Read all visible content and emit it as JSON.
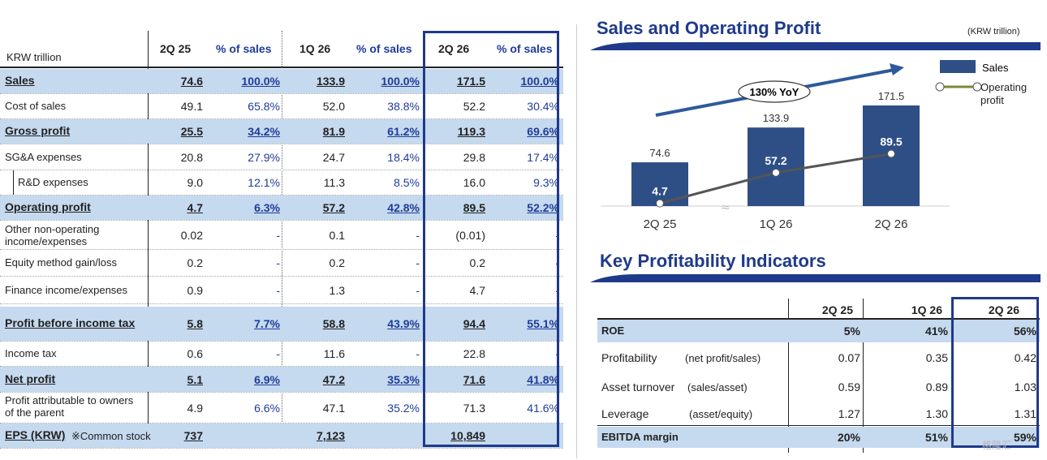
{
  "income_statement": {
    "unit": "KRW trillion",
    "columns": [
      "2Q 25",
      "% of sales",
      "1Q 26",
      "% of sales",
      "2Q 26",
      "% of sales"
    ],
    "rows": [
      {
        "label": "Sales",
        "bold": true,
        "values": [
          "74.6",
          "100.0%",
          "133.9",
          "100.0%",
          "171.5",
          "100.0%"
        ]
      },
      {
        "label": "Cost of sales",
        "bold": false,
        "values": [
          "49.1",
          "65.8%",
          "52.0",
          "38.8%",
          "52.2",
          "30.4%"
        ]
      },
      {
        "label": "Gross profit",
        "bold": true,
        "values": [
          "25.5",
          "34.2%",
          "81.9",
          "61.2%",
          "119.3",
          "69.6%"
        ]
      },
      {
        "label": "SG&A expenses",
        "bold": false,
        "values": [
          "20.8",
          "27.9%",
          "24.7",
          "18.4%",
          "29.8",
          "17.4%"
        ]
      },
      {
        "label": "R&D expenses",
        "bold": false,
        "values": [
          "9.0",
          "12.1%",
          "11.3",
          "8.5%",
          "16.0",
          "9.3%"
        ]
      },
      {
        "label": "Operating profit",
        "bold": true,
        "values": [
          "4.7",
          "6.3%",
          "57.2",
          "42.8%",
          "89.5",
          "52.2%"
        ]
      },
      {
        "label": "Other non-operating income/expenses",
        "bold": false,
        "values": [
          "0.02",
          "-",
          "0.1",
          "-",
          "(0.01)",
          "-"
        ]
      },
      {
        "label": "Equity method gain/loss",
        "bold": false,
        "values": [
          "0.2",
          "-",
          "0.2",
          "-",
          "0.2",
          "-"
        ]
      },
      {
        "label": "Finance income/expenses",
        "bold": false,
        "values": [
          "0.9",
          "-",
          "1.3",
          "-",
          "4.7",
          "-"
        ]
      },
      {
        "label": "Profit before income tax",
        "bold": true,
        "values": [
          "5.8",
          "7.7%",
          "58.8",
          "43.9%",
          "94.4",
          "55.1%"
        ]
      },
      {
        "label": "Income tax",
        "bold": false,
        "values": [
          "0.6",
          "-",
          "11.6",
          "-",
          "22.8",
          "-"
        ]
      },
      {
        "label": "Net profit",
        "bold": true,
        "values": [
          "5.1",
          "6.9%",
          "47.2",
          "35.3%",
          "71.6",
          "41.8%"
        ]
      },
      {
        "label": "Profit attributable to owners of the parent",
        "bold": false,
        "values": [
          "4.9",
          "6.6%",
          "47.1",
          "35.2%",
          "71.3",
          "41.6%"
        ]
      },
      {
        "label": "EPS (KRW)",
        "note": "※Common stock",
        "bold": true,
        "values": [
          "737",
          "",
          "7,123",
          "",
          "10,849",
          ""
        ]
      }
    ]
  },
  "sales_chart": {
    "title": "Sales and Operating Profit",
    "unit": "(KRW trillion)",
    "yoy_label": "130% YoY",
    "legend": {
      "sales": "Sales",
      "op": "Operating profit"
    },
    "colors": {
      "bar": "#2e4f86",
      "line": "#555555",
      "arrow": "#2e5a9c"
    },
    "chart_data": {
      "type": "bar",
      "categories": [
        "2Q 25",
        "1Q 26",
        "2Q 26"
      ],
      "series": [
        {
          "name": "Sales",
          "type": "bar",
          "values": [
            74.6,
            133.9,
            171.5
          ]
        },
        {
          "name": "Operating profit",
          "type": "line",
          "values": [
            4.7,
            57.2,
            89.5
          ]
        }
      ]
    }
  },
  "kpi": {
    "title": "Key Profitability Indicators",
    "columns": [
      "2Q 25",
      "1Q 26",
      "2Q 26"
    ],
    "rows": [
      {
        "label": "ROE",
        "sub": "",
        "bold": true,
        "values": [
          "5%",
          "41%",
          "56%"
        ]
      },
      {
        "label": "Profitability",
        "sub": "(net profit/sales)",
        "bold": false,
        "values": [
          "0.07",
          "0.35",
          "0.42"
        ]
      },
      {
        "label": "Asset turnover",
        "sub": "(sales/asset)",
        "bold": false,
        "values": [
          "0.59",
          "0.89",
          "1.03"
        ]
      },
      {
        "label": "Leverage",
        "sub": "(asset/equity)",
        "bold": false,
        "values": [
          "1.27",
          "1.30",
          "1.31"
        ]
      },
      {
        "label": "EBITDA margin",
        "sub": "",
        "bold": true,
        "values": [
          "20%",
          "51%",
          "59%"
        ]
      }
    ]
  },
  "watermark": "格隆汇"
}
